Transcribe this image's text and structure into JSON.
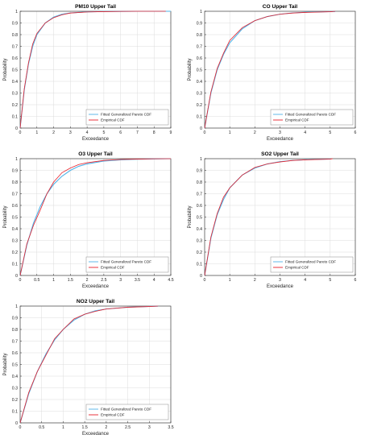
{
  "colors": {
    "fitted": "#4fb3e8",
    "empirical": "#e8202a",
    "grid": "#dcdcdc",
    "axis": "#262626"
  },
  "chart_data": [
    {
      "type": "line",
      "title": "PM10 Upper Tail",
      "xlabel": "Exceedance",
      "ylabel": "Probability",
      "xlim": [
        0,
        9
      ],
      "ylim": [
        0,
        1
      ],
      "xticks": [
        0,
        1,
        2,
        3,
        4,
        5,
        6,
        7,
        8,
        9
      ],
      "yticks": [
        0,
        0.1,
        0.2,
        0.3,
        0.4,
        0.5,
        0.6,
        0.7,
        0.8,
        0.9,
        1
      ],
      "grid": true,
      "legend_position": "bottom-right",
      "series": [
        {
          "name": "Fitted Generalized Pareto CDF",
          "color": "#4fb3e8",
          "x": [
            0,
            0.25,
            0.5,
            0.75,
            1,
            1.5,
            2,
            2.5,
            3,
            4,
            5,
            6,
            7,
            8,
            9
          ],
          "y": [
            0,
            0.33,
            0.55,
            0.7,
            0.8,
            0.9,
            0.95,
            0.975,
            0.986,
            0.995,
            0.998,
            0.999,
            1,
            1,
            1
          ]
        },
        {
          "name": "Empirical CDF",
          "color": "#e8202a",
          "x": [
            0,
            0.25,
            0.5,
            0.75,
            1,
            1.5,
            2,
            2.5,
            3,
            4,
            5,
            6,
            7,
            8.7
          ],
          "y": [
            0,
            0.34,
            0.56,
            0.72,
            0.81,
            0.9,
            0.945,
            0.97,
            0.985,
            0.994,
            0.997,
            0.999,
            1,
            1
          ]
        }
      ]
    },
    {
      "type": "line",
      "title": "CO Upper Tail",
      "xlabel": "Exceedance",
      "ylabel": "Probability",
      "xlim": [
        0,
        6
      ],
      "ylim": [
        0,
        1
      ],
      "xticks": [
        0,
        1,
        2,
        3,
        4,
        5,
        6
      ],
      "yticks": [
        0,
        0.1,
        0.2,
        0.3,
        0.4,
        0.5,
        0.6,
        0.7,
        0.8,
        0.9,
        1
      ],
      "grid": true,
      "legend_position": "bottom-right",
      "series": [
        {
          "name": "Fitted Generalized Pareto CDF",
          "color": "#4fb3e8",
          "x": [
            0,
            0.25,
            0.5,
            0.75,
            1,
            1.5,
            2,
            2.5,
            3,
            3.5,
            4,
            5,
            5.2
          ],
          "y": [
            0,
            0.3,
            0.5,
            0.63,
            0.73,
            0.85,
            0.92,
            0.955,
            0.975,
            0.986,
            0.992,
            0.997,
            0.998
          ]
        },
        {
          "name": "Empirical CDF",
          "color": "#e8202a",
          "x": [
            0,
            0.25,
            0.5,
            0.75,
            1,
            1.5,
            2,
            2.5,
            3,
            3.5,
            4,
            5,
            5.2
          ],
          "y": [
            0,
            0.31,
            0.51,
            0.64,
            0.75,
            0.86,
            0.92,
            0.955,
            0.975,
            0.985,
            0.99,
            0.996,
            1
          ]
        }
      ]
    },
    {
      "type": "line",
      "title": "O3 Upper Tail",
      "xlabel": "Exceedance",
      "ylabel": "Probability",
      "xlim": [
        0,
        4.5
      ],
      "ylim": [
        0,
        1
      ],
      "xticks": [
        0,
        0.5,
        1,
        1.5,
        2,
        2.5,
        3,
        3.5,
        4,
        4.5
      ],
      "yticks": [
        0,
        0.1,
        0.2,
        0.3,
        0.4,
        0.5,
        0.6,
        0.7,
        0.8,
        0.9,
        1
      ],
      "grid": true,
      "legend_position": "bottom-right",
      "series": [
        {
          "name": "Fitted Generalized Pareto CDF",
          "color": "#4fb3e8",
          "x": [
            0,
            0.2,
            0.4,
            0.6,
            0.8,
            1,
            1.25,
            1.5,
            1.75,
            2,
            2.5,
            3,
            3.5,
            4,
            4.5
          ],
          "y": [
            0,
            0.26,
            0.45,
            0.59,
            0.7,
            0.78,
            0.85,
            0.9,
            0.935,
            0.955,
            0.98,
            0.99,
            0.995,
            0.998,
            1
          ]
        },
        {
          "name": "Empirical CDF",
          "color": "#e8202a",
          "x": [
            0,
            0.2,
            0.4,
            0.6,
            0.8,
            1,
            1.25,
            1.5,
            1.75,
            2,
            2.5,
            3,
            3.5,
            4,
            4.5
          ],
          "y": [
            0,
            0.27,
            0.43,
            0.56,
            0.7,
            0.8,
            0.88,
            0.92,
            0.95,
            0.965,
            0.985,
            0.993,
            0.996,
            0.999,
            1
          ]
        }
      ]
    },
    {
      "type": "line",
      "title": "SO2 Upper Tail",
      "xlabel": "Exceedance",
      "ylabel": "Probability",
      "xlim": [
        0,
        6
      ],
      "ylim": [
        0,
        1
      ],
      "xticks": [
        0,
        1,
        2,
        3,
        4,
        5,
        6
      ],
      "yticks": [
        0,
        0.1,
        0.2,
        0.3,
        0.4,
        0.5,
        0.6,
        0.7,
        0.8,
        0.9,
        1
      ],
      "grid": true,
      "legend_position": "bottom-right",
      "series": [
        {
          "name": "Fitted Generalized Pareto CDF",
          "color": "#4fb3e8",
          "x": [
            0,
            0.25,
            0.5,
            0.75,
            1,
            1.5,
            2,
            2.5,
            3,
            3.5,
            4,
            5
          ],
          "y": [
            0,
            0.32,
            0.52,
            0.65,
            0.75,
            0.86,
            0.92,
            0.955,
            0.975,
            0.985,
            0.991,
            0.997
          ]
        },
        {
          "name": "Empirical CDF",
          "color": "#e8202a",
          "x": [
            0,
            0.25,
            0.5,
            0.75,
            1,
            1.5,
            2,
            2.5,
            3,
            3.5,
            4,
            5,
            5.1
          ],
          "y": [
            0,
            0.33,
            0.53,
            0.67,
            0.75,
            0.86,
            0.925,
            0.955,
            0.972,
            0.985,
            0.99,
            0.996,
            1
          ]
        }
      ]
    },
    {
      "type": "line",
      "title": "NO2 Upper Tail",
      "xlabel": "Exceedance",
      "ylabel": "Probability",
      "xlim": [
        0,
        3.5
      ],
      "ylim": [
        0,
        1
      ],
      "xticks": [
        0,
        0.5,
        1,
        1.5,
        2,
        2.5,
        3,
        3.5
      ],
      "yticks": [
        0,
        0.1,
        0.2,
        0.3,
        0.4,
        0.5,
        0.6,
        0.7,
        0.8,
        0.9,
        1
      ],
      "grid": true,
      "legend_position": "bottom-right",
      "series": [
        {
          "name": "Fitted Generalized Pareto CDF",
          "color": "#4fb3e8",
          "x": [
            0,
            0.2,
            0.4,
            0.6,
            0.8,
            1,
            1.25,
            1.5,
            1.75,
            2,
            2.5,
            3,
            3.2
          ],
          "y": [
            0,
            0.25,
            0.44,
            0.59,
            0.71,
            0.8,
            0.88,
            0.93,
            0.96,
            0.975,
            0.99,
            0.997,
            0.999
          ]
        },
        {
          "name": "Empirical CDF",
          "color": "#e8202a",
          "x": [
            0,
            0.2,
            0.4,
            0.6,
            0.8,
            1,
            1.25,
            1.5,
            1.75,
            2,
            2.5,
            3,
            3.2
          ],
          "y": [
            0,
            0.26,
            0.44,
            0.58,
            0.72,
            0.8,
            0.89,
            0.93,
            0.955,
            0.975,
            0.99,
            0.996,
            1
          ]
        }
      ]
    }
  ]
}
